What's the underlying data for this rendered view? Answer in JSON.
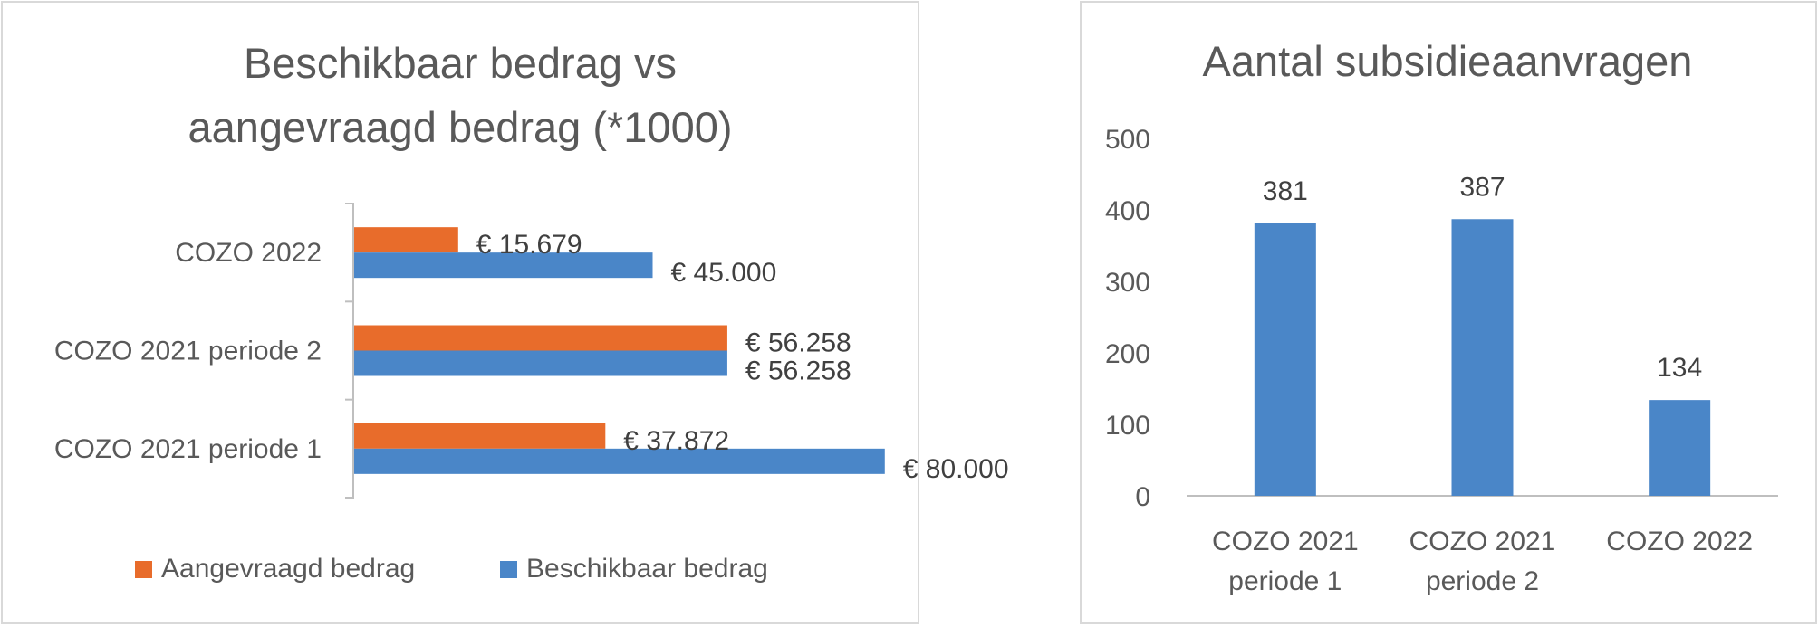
{
  "colors": {
    "requested": "#E86C2B",
    "available": "#4A86C8",
    "bar_single": "#4A86C8",
    "text": "#595959",
    "axis": "#BFBFBF",
    "border": "#D9D9D9"
  },
  "chart_data": [
    {
      "type": "bar",
      "orientation": "horizontal",
      "title_lines": [
        "Beschikbaar bedrag vs",
        "aangevraagd bedrag (*1000)"
      ],
      "categories": [
        "COZO 2022",
        "COZO 2021 periode 2",
        "COZO 2021 periode 1"
      ],
      "series": [
        {
          "name": "Aangevraagd bedrag",
          "values": [
            15.679,
            56.258,
            37.872
          ],
          "labels": [
            "€ 15.679",
            "€ 56.258",
            "€ 37.872"
          ]
        },
        {
          "name": "Beschikbaar bedrag",
          "values": [
            45.0,
            56.258,
            80.0
          ],
          "labels": [
            "€ 45.000",
            "€ 56.258",
            "€ 80.000"
          ]
        }
      ],
      "xlim": [
        0,
        90
      ],
      "legend": "bottom",
      "grid": false
    },
    {
      "type": "bar",
      "title": "Aantal subsidieaanvragen",
      "categories": [
        [
          "COZO 2021",
          "periode 1"
        ],
        [
          "COZO 2021",
          "periode 2"
        ],
        [
          "COZO 2022"
        ]
      ],
      "values": [
        381,
        387,
        134
      ],
      "ylim": [
        0,
        500
      ],
      "yticks": [
        "0",
        "100",
        "200",
        "300",
        "400",
        "500"
      ],
      "grid": false
    }
  ]
}
